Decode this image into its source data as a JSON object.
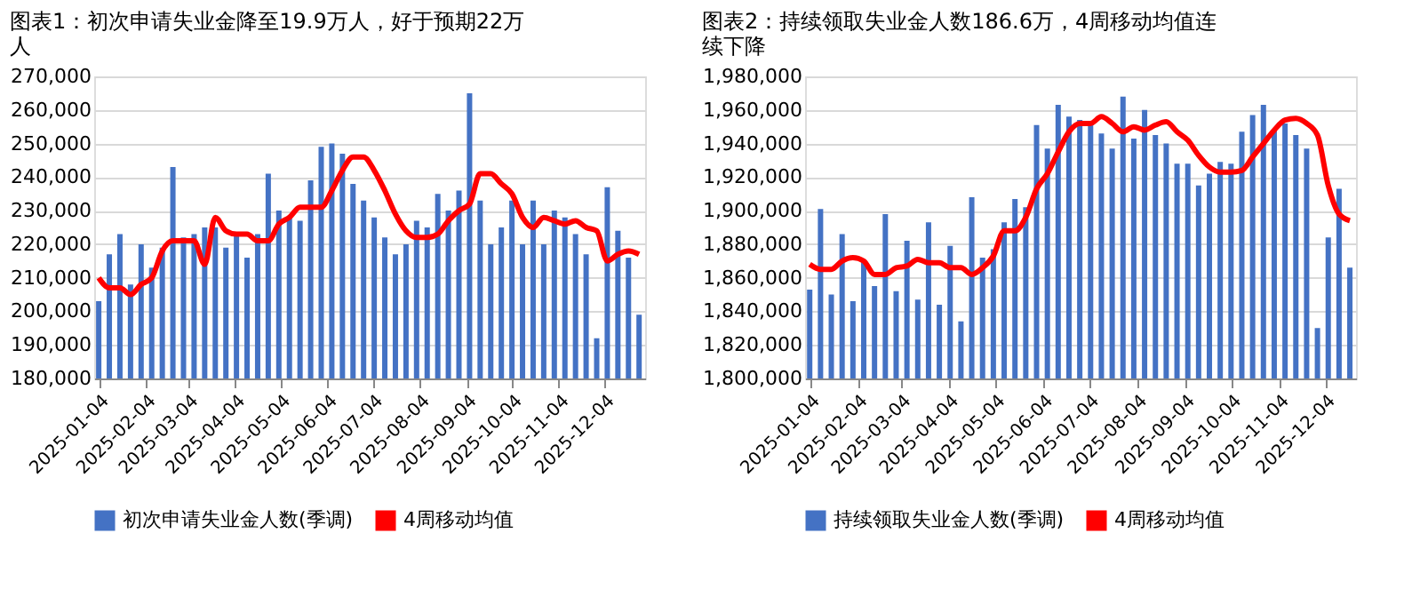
{
  "chart_data": [
    {
      "type": "bar",
      "title": "图表1：初次申请失业金降至19.9万人，好于预期22万人",
      "x": [
        "2025-01-04",
        "2025-01-11",
        "2025-01-18",
        "2025-01-25",
        "2025-02-01",
        "2025-02-08",
        "2025-02-15",
        "2025-02-22",
        "2025-03-01",
        "2025-03-08",
        "2025-03-15",
        "2025-03-22",
        "2025-03-29",
        "2025-04-05",
        "2025-04-12",
        "2025-04-19",
        "2025-04-26",
        "2025-05-03",
        "2025-05-10",
        "2025-05-17",
        "2025-05-24",
        "2025-05-31",
        "2025-06-07",
        "2025-06-14",
        "2025-06-21",
        "2025-06-28",
        "2025-07-05",
        "2025-07-12",
        "2025-07-19",
        "2025-07-26",
        "2025-08-02",
        "2025-08-09",
        "2025-08-16",
        "2025-08-23",
        "2025-08-30",
        "2025-09-06",
        "2025-09-13",
        "2025-09-20",
        "2025-09-27",
        "2025-10-04",
        "2025-10-11",
        "2025-10-18",
        "2025-10-25",
        "2025-11-01",
        "2025-11-08",
        "2025-11-15",
        "2025-11-22",
        "2025-11-29",
        "2025-12-06",
        "2025-12-13",
        "2025-12-20",
        "2025-12-27"
      ],
      "series": [
        {
          "name": "初次申请失业金人数(季调)",
          "type": "bar",
          "color": "#4472c4",
          "values": [
            203000,
            217000,
            223000,
            208000,
            220000,
            213000,
            219000,
            243000,
            222000,
            223000,
            225000,
            225000,
            219000,
            223000,
            216000,
            223000,
            241000,
            230000,
            228000,
            227000,
            239000,
            249000,
            250000,
            247000,
            238000,
            233000,
            228000,
            222000,
            217000,
            220000,
            227000,
            225000,
            235000,
            230000,
            236000,
            265000,
            233000,
            220000,
            225000,
            233000,
            220000,
            233000,
            220000,
            230000,
            228000,
            223000,
            217000,
            192000,
            237000,
            224000,
            216000,
            199000
          ]
        },
        {
          "name": "4周移动均值",
          "type": "line",
          "color": "#ff0000",
          "values": [
            210000,
            207000,
            207000,
            205000,
            208000,
            210000,
            218000,
            221000,
            221000,
            221000,
            214000,
            228000,
            224000,
            223000,
            223000,
            221000,
            221000,
            226000,
            228000,
            231000,
            231000,
            231000,
            236000,
            242000,
            246000,
            246000,
            242000,
            236000,
            229000,
            224000,
            222000,
            222000,
            223000,
            227000,
            230000,
            232000,
            241000,
            241000,
            238000,
            235000,
            228000,
            225000,
            228000,
            227000,
            226000,
            227000,
            225000,
            224000,
            215000,
            217000,
            218000,
            217000
          ]
        }
      ],
      "xlim": [
        "2025-01-01",
        "2025-12-31"
      ],
      "xticks": [
        "2025-01-04",
        "2025-02-04",
        "2025-03-04",
        "2025-04-04",
        "2025-05-04",
        "2025-06-04",
        "2025-07-04",
        "2025-08-04",
        "2025-09-04",
        "2025-10-04",
        "2025-11-04",
        "2025-12-04"
      ],
      "ylim": [
        180000,
        270000
      ],
      "yticks": [
        {
          "value": 180000,
          "label": "180,000"
        },
        {
          "value": 190000,
          "label": "190,000"
        },
        {
          "value": 200000,
          "label": "200,000"
        },
        {
          "value": 210000,
          "label": "210,000"
        },
        {
          "value": 220000,
          "label": "220,000"
        },
        {
          "value": 230000,
          "label": "230,000"
        },
        {
          "value": 240000,
          "label": "240,000"
        },
        {
          "value": 250000,
          "label": "250,000"
        },
        {
          "value": 260000,
          "label": "260,000"
        },
        {
          "value": 270000,
          "label": "270,000"
        }
      ],
      "grid": "y",
      "legend": "bottom"
    },
    {
      "type": "bar",
      "title": "图表2：持续领取失业金人数186.6万，4周移动均值连续下降",
      "x": [
        "2025-01-04",
        "2025-01-11",
        "2025-01-18",
        "2025-01-25",
        "2025-02-01",
        "2025-02-08",
        "2025-02-15",
        "2025-02-22",
        "2025-03-01",
        "2025-03-08",
        "2025-03-15",
        "2025-03-22",
        "2025-03-29",
        "2025-04-05",
        "2025-04-12",
        "2025-04-19",
        "2025-04-26",
        "2025-05-03",
        "2025-05-10",
        "2025-05-17",
        "2025-05-24",
        "2025-05-31",
        "2025-06-07",
        "2025-06-14",
        "2025-06-21",
        "2025-06-28",
        "2025-07-05",
        "2025-07-12",
        "2025-07-19",
        "2025-07-26",
        "2025-08-02",
        "2025-08-09",
        "2025-08-16",
        "2025-08-23",
        "2025-08-30",
        "2025-09-06",
        "2025-09-13",
        "2025-09-20",
        "2025-09-27",
        "2025-10-04",
        "2025-10-11",
        "2025-10-18",
        "2025-10-25",
        "2025-11-01",
        "2025-11-08",
        "2025-11-15",
        "2025-11-22",
        "2025-11-29",
        "2025-12-06",
        "2025-12-13",
        "2025-12-20"
      ],
      "series": [
        {
          "name": "持续领取失业金人数(季调)",
          "type": "bar",
          "color": "#4472c4",
          "values": [
            1853000,
            1901000,
            1850000,
            1886000,
            1846000,
            1870000,
            1855000,
            1898000,
            1852000,
            1882000,
            1847000,
            1893000,
            1844000,
            1879000,
            1834000,
            1908000,
            1872000,
            1877000,
            1893000,
            1907000,
            1902000,
            1951000,
            1937000,
            1963000,
            1956000,
            1954000,
            1952000,
            1946000,
            1937000,
            1968000,
            1943000,
            1960000,
            1945000,
            1940000,
            1928000,
            1928000,
            1915000,
            1922000,
            1929000,
            1928000,
            1947000,
            1957000,
            1963000,
            1948000,
            1952000,
            1945000,
            1937000,
            1830000,
            1884000,
            1913000,
            1866000
          ]
        },
        {
          "name": "4周移动均值",
          "type": "line",
          "color": "#ff0000",
          "values": [
            1868000,
            1865000,
            1865000,
            1870000,
            1872000,
            1870000,
            1862000,
            1862000,
            1866000,
            1867000,
            1871000,
            1869000,
            1869000,
            1866000,
            1866000,
            1862000,
            1866000,
            1873000,
            1888000,
            1888000,
            1896000,
            1913000,
            1922000,
            1935000,
            1947000,
            1952000,
            1952000,
            1956000,
            1952000,
            1947000,
            1950000,
            1948000,
            1951000,
            1953000,
            1947000,
            1942000,
            1933000,
            1926000,
            1923000,
            1923000,
            1924000,
            1932000,
            1940000,
            1948000,
            1954000,
            1955000,
            1952000,
            1945000,
            1915000,
            1898000,
            1894000
          ]
        }
      ],
      "xlim": [
        "2025-01-01",
        "2025-12-24"
      ],
      "xticks": [
        "2025-01-04",
        "2025-02-04",
        "2025-03-04",
        "2025-04-04",
        "2025-05-04",
        "2025-06-04",
        "2025-07-04",
        "2025-08-04",
        "2025-09-04",
        "2025-10-04",
        "2025-11-04",
        "2025-12-04"
      ],
      "ylim": [
        1800000,
        1980000
      ],
      "yticks": [
        {
          "value": 1800000,
          "label": "1,800,000"
        },
        {
          "value": 1820000,
          "label": "1,820,000"
        },
        {
          "value": 1840000,
          "label": "1,840,000"
        },
        {
          "value": 1860000,
          "label": "1,860,000"
        },
        {
          "value": 1880000,
          "label": "1,880,000"
        },
        {
          "value": 1900000,
          "label": "1,900,000"
        },
        {
          "value": 1920000,
          "label": "1,920,000"
        },
        {
          "value": 1940000,
          "label": "1,940,000"
        },
        {
          "value": 1960000,
          "label": "1,960,000"
        },
        {
          "value": 1980000,
          "label": "1,980,000"
        }
      ],
      "grid": "y",
      "legend": "bottom"
    }
  ]
}
